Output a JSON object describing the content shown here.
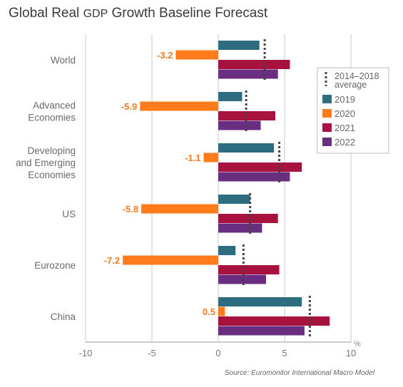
{
  "title_part1": "Global Real ",
  "title_part2": "GDP",
  "title_part3": " Growth Baseline Forecast",
  "source": "Source: Euromonitor International Macro Model",
  "colors": {
    "2019": "#2e6c80",
    "2020": "#ff7b1c",
    "2021": "#a8123e",
    "2022": "#6a2e80",
    "average": "#444444",
    "label_2020": "#f47a1f",
    "axis": "#999999",
    "text": "#666666"
  },
  "chart_data": {
    "type": "bar",
    "orientation": "horizontal",
    "title": "Global Real GDP Growth Baseline Forecast",
    "unit": "%",
    "categories": [
      [
        "World"
      ],
      [
        "Advanced",
        "Economies"
      ],
      [
        "Developing",
        "and Emerging",
        "Economies"
      ],
      [
        "US"
      ],
      [
        "Eurozone"
      ],
      [
        "China"
      ]
    ],
    "series": [
      {
        "name": "2019",
        "values": [
          3.1,
          1.8,
          4.2,
          2.4,
          1.3,
          6.3
        ]
      },
      {
        "name": "2020",
        "values": [
          -3.2,
          -5.9,
          -1.1,
          -5.8,
          -7.2,
          0.5
        ]
      },
      {
        "name": "2021",
        "values": [
          5.4,
          4.3,
          6.3,
          4.5,
          4.6,
          8.4
        ]
      },
      {
        "name": "2022",
        "values": [
          4.5,
          3.2,
          5.4,
          3.3,
          3.6,
          6.5
        ]
      }
    ],
    "average": {
      "name": "2014–2018 average",
      "label_lines": [
        "2014–2018",
        "average"
      ],
      "values": [
        3.5,
        2.1,
        4.6,
        2.4,
        1.9,
        6.9
      ]
    },
    "data_labels_2020": [
      "-3.2",
      "-5.9",
      "-1.1",
      "-5.8",
      "-7.2",
      "0.5"
    ],
    "xlim": [
      -10,
      10
    ],
    "xticks": [
      -10,
      -5,
      0,
      5,
      10
    ],
    "xtick_labels": [
      "-10",
      "-5",
      "0",
      "5",
      "10"
    ],
    "grid": true,
    "legend_position": "right"
  }
}
